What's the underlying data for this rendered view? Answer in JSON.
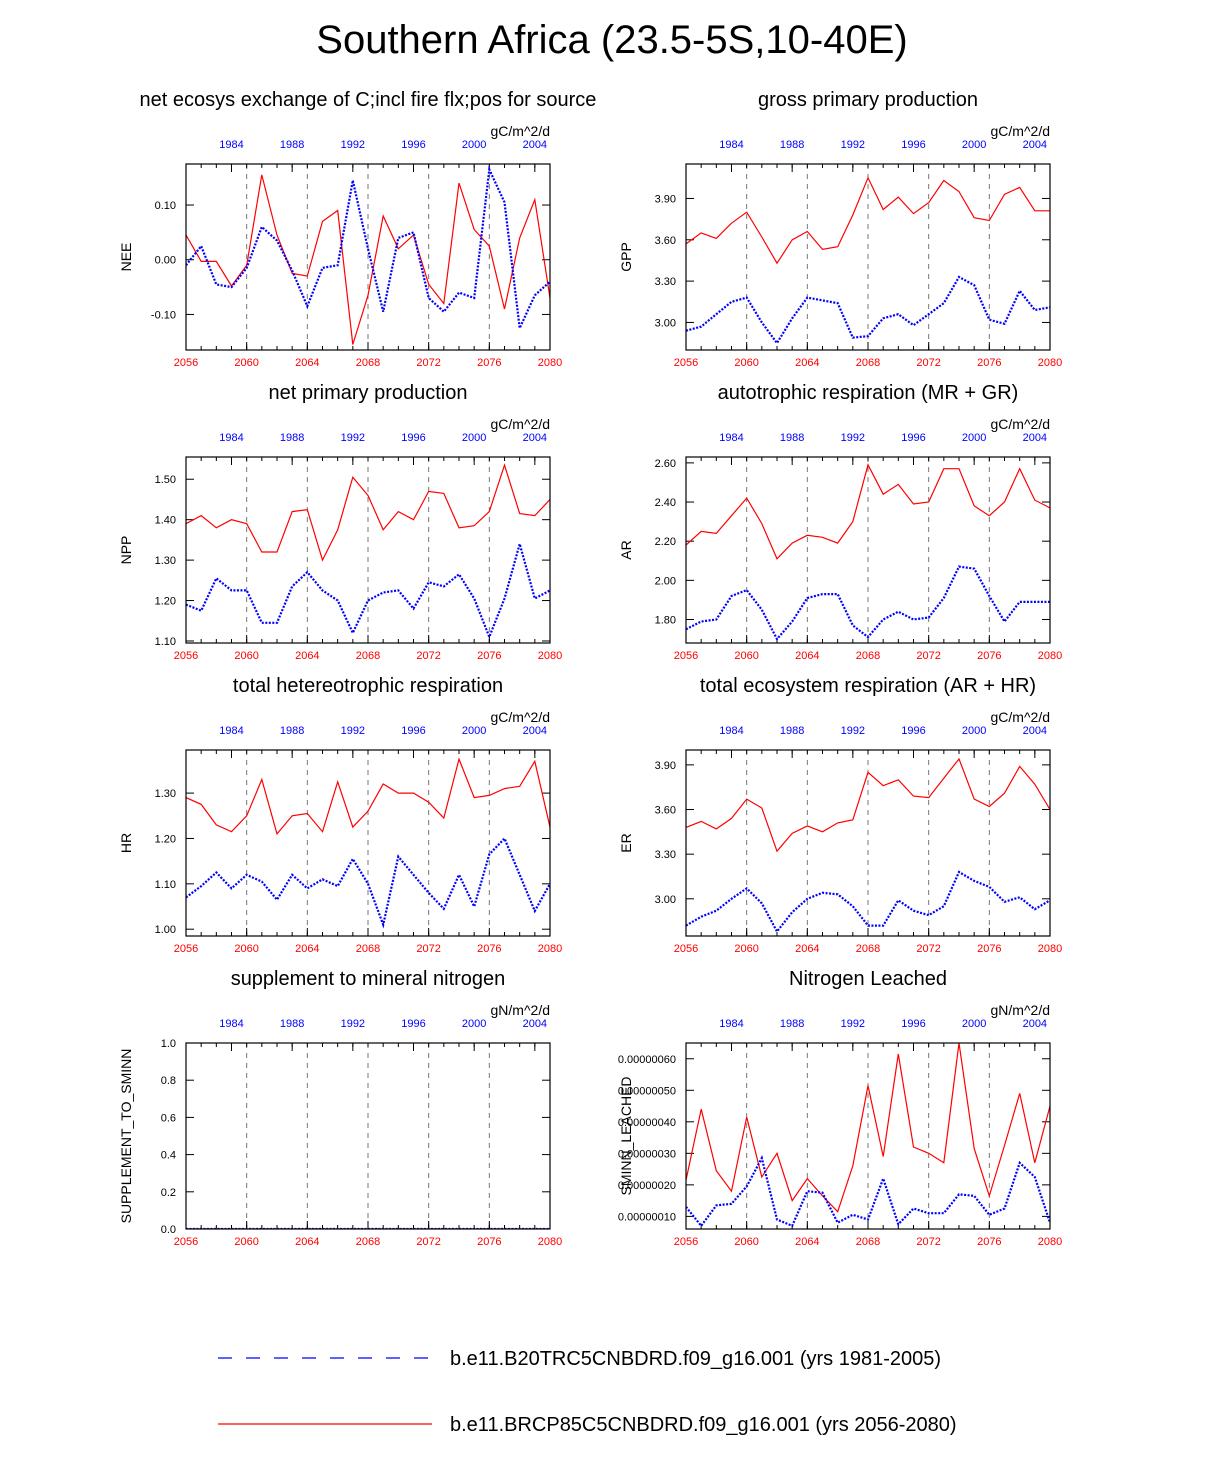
{
  "title": "Southern Africa (23.5-5S,10-40E)",
  "colors": {
    "future": "#ff0000",
    "historical": "#0000ff",
    "grid": "#777777"
  },
  "legend": {
    "historical": "b.e11.B20TRC5CNBDRD.f09_g16.001 (yrs 1981-2005)",
    "future": "b.e11.BRCP85C5CNBDRD.f09_g16.001 (yrs 2056-2080)"
  },
  "chart_data": [
    {
      "type": "line",
      "title": "net ecosys exchange of C;incl fire flx;pos for source",
      "units": "gC/m^2/d",
      "ylabel": "NEE",
      "xlim_bottom": [
        2056,
        2080
      ],
      "xlim_top": [
        1981,
        2005
      ],
      "bottom_ticks": [
        "2056",
        "2060",
        "2064",
        "2068",
        "2072",
        "2076",
        "2080"
      ],
      "top_ticks": [
        "1984",
        "1988",
        "1992",
        "1996",
        "2000",
        "2004"
      ],
      "ylim": [
        -0.165,
        0.175
      ],
      "yticks": [
        -0.1,
        0.0,
        0.1
      ],
      "ytick_labels": [
        "-0.10",
        "0.00",
        "0.10"
      ],
      "series": [
        {
          "name": "b.e11.BRCP85C5CNBDRD.f09_g16.001 (yrs 2056-2080)",
          "style": "solid",
          "values": [
            0.045,
            -0.003,
            -0.003,
            -0.048,
            -0.01,
            0.155,
            0.045,
            -0.025,
            -0.03,
            0.07,
            0.09,
            -0.155,
            -0.065,
            0.08,
            0.02,
            0.045,
            -0.045,
            -0.08,
            0.14,
            0.055,
            0.025,
            -0.09,
            0.04,
            0.11,
            -0.07
          ]
        },
        {
          "name": "b.e11.B20TRC5CNBDRD.f09_g16.001 (yrs 1981-2005)",
          "style": "dotted",
          "values": [
            -0.01,
            0.025,
            -0.045,
            -0.05,
            -0.015,
            0.06,
            0.035,
            -0.02,
            -0.085,
            -0.015,
            -0.01,
            0.145,
            0.02,
            -0.095,
            0.04,
            0.05,
            -0.07,
            -0.095,
            -0.06,
            -0.07,
            0.165,
            0.105,
            -0.125,
            -0.065,
            -0.04
          ]
        }
      ]
    },
    {
      "type": "line",
      "title": "gross primary production",
      "units": "gC/m^2/d",
      "ylabel": "GPP",
      "xlim_bottom": [
        2056,
        2080
      ],
      "xlim_top": [
        1981,
        2005
      ],
      "bottom_ticks": [
        "2056",
        "2060",
        "2064",
        "2068",
        "2072",
        "2076",
        "2080"
      ],
      "top_ticks": [
        "1984",
        "1988",
        "1992",
        "1996",
        "2000",
        "2004"
      ],
      "ylim": [
        2.8,
        4.15
      ],
      "yticks": [
        3.0,
        3.3,
        3.6,
        3.9
      ],
      "ytick_labels": [
        "3.00",
        "3.30",
        "3.60",
        "3.90"
      ],
      "series": [
        {
          "name": "b.e11.BRCP85C5CNBDRD.f09_g16.001 (yrs 2056-2080)",
          "style": "solid",
          "values": [
            3.57,
            3.65,
            3.61,
            3.72,
            3.8,
            3.62,
            3.43,
            3.6,
            3.66,
            3.53,
            3.55,
            3.78,
            4.05,
            3.82,
            3.91,
            3.79,
            3.87,
            4.03,
            3.95,
            3.76,
            3.74,
            3.93,
            3.98,
            3.81,
            3.81
          ]
        },
        {
          "name": "b.e11.B20TRC5CNBDRD.f09_g16.001 (yrs 1981-2005)",
          "style": "dotted",
          "values": [
            2.94,
            2.97,
            3.06,
            3.15,
            3.18,
            3.0,
            2.85,
            3.03,
            3.18,
            3.16,
            3.14,
            2.89,
            2.9,
            3.03,
            3.06,
            2.98,
            3.06,
            3.14,
            3.33,
            3.27,
            3.02,
            2.99,
            3.23,
            3.09,
            3.11
          ]
        }
      ]
    },
    {
      "type": "line",
      "title": "net primary production",
      "units": "gC/m^2/d",
      "ylabel": "NPP",
      "xlim_bottom": [
        2056,
        2080
      ],
      "xlim_top": [
        1981,
        2005
      ],
      "bottom_ticks": [
        "2056",
        "2060",
        "2064",
        "2068",
        "2072",
        "2076",
        "2080"
      ],
      "top_ticks": [
        "1984",
        "1988",
        "1992",
        "1996",
        "2000",
        "2004"
      ],
      "ylim": [
        1.095,
        1.555
      ],
      "yticks": [
        1.1,
        1.2,
        1.3,
        1.4,
        1.5
      ],
      "ytick_labels": [
        "1.10",
        "1.20",
        "1.30",
        "1.40",
        "1.50"
      ],
      "series": [
        {
          "name": "b.e11.BRCP85C5CNBDRD.f09_g16.001 (yrs 2056-2080)",
          "style": "solid",
          "values": [
            1.39,
            1.41,
            1.38,
            1.4,
            1.39,
            1.32,
            1.32,
            1.42,
            1.425,
            1.3,
            1.375,
            1.505,
            1.46,
            1.375,
            1.42,
            1.4,
            1.47,
            1.465,
            1.38,
            1.385,
            1.42,
            1.535,
            1.415,
            1.41,
            1.45
          ]
        },
        {
          "name": "b.e11.B20TRC5CNBDRD.f09_g16.001 (yrs 1981-2005)",
          "style": "dotted",
          "values": [
            1.19,
            1.175,
            1.255,
            1.225,
            1.225,
            1.145,
            1.145,
            1.235,
            1.27,
            1.225,
            1.2,
            1.12,
            1.2,
            1.22,
            1.225,
            1.18,
            1.245,
            1.235,
            1.265,
            1.205,
            1.11,
            1.205,
            1.34,
            1.205,
            1.225
          ]
        }
      ]
    },
    {
      "type": "line",
      "title": "autotrophic respiration (MR + GR)",
      "units": "gC/m^2/d",
      "ylabel": "AR",
      "xlim_bottom": [
        2056,
        2080
      ],
      "xlim_top": [
        1981,
        2005
      ],
      "bottom_ticks": [
        "2056",
        "2060",
        "2064",
        "2068",
        "2072",
        "2076",
        "2080"
      ],
      "top_ticks": [
        "1984",
        "1988",
        "1992",
        "1996",
        "2000",
        "2004"
      ],
      "ylim": [
        1.68,
        2.63
      ],
      "yticks": [
        1.8,
        2.0,
        2.2,
        2.4,
        2.6
      ],
      "ytick_labels": [
        "1.80",
        "2.00",
        "2.20",
        "2.40",
        "2.60"
      ],
      "series": [
        {
          "name": "b.e11.BRCP85C5CNBDRD.f09_g16.001 (yrs 2056-2080)",
          "style": "solid",
          "values": [
            2.18,
            2.25,
            2.24,
            2.33,
            2.42,
            2.29,
            2.11,
            2.19,
            2.23,
            2.22,
            2.19,
            2.3,
            2.59,
            2.44,
            2.49,
            2.39,
            2.4,
            2.57,
            2.57,
            2.38,
            2.33,
            2.4,
            2.57,
            2.41,
            2.37
          ]
        },
        {
          "name": "b.e11.B20TRC5CNBDRD.f09_g16.001 (yrs 1981-2005)",
          "style": "dotted",
          "values": [
            1.75,
            1.79,
            1.8,
            1.92,
            1.95,
            1.85,
            1.7,
            1.79,
            1.91,
            1.93,
            1.93,
            1.77,
            1.71,
            1.8,
            1.84,
            1.8,
            1.81,
            1.91,
            2.07,
            2.06,
            1.92,
            1.79,
            1.89,
            1.89,
            1.89
          ]
        }
      ]
    },
    {
      "type": "line",
      "title": "total hetereotrophic respiration",
      "units": "gC/m^2/d",
      "ylabel": "HR",
      "xlim_bottom": [
        2056,
        2080
      ],
      "xlim_top": [
        1981,
        2005
      ],
      "bottom_ticks": [
        "2056",
        "2060",
        "2064",
        "2068",
        "2072",
        "2076",
        "2080"
      ],
      "top_ticks": [
        "1984",
        "1988",
        "1992",
        "1996",
        "2000",
        "2004"
      ],
      "ylim": [
        0.985,
        1.395
      ],
      "yticks": [
        1.0,
        1.1,
        1.2,
        1.3
      ],
      "ytick_labels": [
        "1.00",
        "1.10",
        "1.20",
        "1.30"
      ],
      "series": [
        {
          "name": "b.e11.BRCP85C5CNBDRD.f09_g16.001 (yrs 2056-2080)",
          "style": "solid",
          "values": [
            1.29,
            1.275,
            1.23,
            1.215,
            1.25,
            1.33,
            1.21,
            1.25,
            1.255,
            1.215,
            1.325,
            1.225,
            1.26,
            1.32,
            1.3,
            1.3,
            1.28,
            1.245,
            1.375,
            1.29,
            1.295,
            1.31,
            1.315,
            1.37,
            1.225
          ]
        },
        {
          "name": "b.e11.B20TRC5CNBDRD.f09_g16.001 (yrs 1981-2005)",
          "style": "dotted",
          "values": [
            1.07,
            1.095,
            1.125,
            1.09,
            1.12,
            1.105,
            1.065,
            1.12,
            1.09,
            1.11,
            1.095,
            1.155,
            1.1,
            1.01,
            1.16,
            1.12,
            1.08,
            1.045,
            1.12,
            1.05,
            1.165,
            1.2,
            1.12,
            1.04,
            1.1
          ]
        }
      ]
    },
    {
      "type": "line",
      "title": "total ecosystem respiration (AR + HR)",
      "units": "gC/m^2/d",
      "ylabel": "ER",
      "xlim_bottom": [
        2056,
        2080
      ],
      "xlim_top": [
        1981,
        2005
      ],
      "bottom_ticks": [
        "2056",
        "2060",
        "2064",
        "2068",
        "2072",
        "2076",
        "2080"
      ],
      "top_ticks": [
        "1984",
        "1988",
        "1992",
        "1996",
        "2000",
        "2004"
      ],
      "ylim": [
        2.75,
        4.0
      ],
      "yticks": [
        3.0,
        3.3,
        3.6,
        3.9
      ],
      "ytick_labels": [
        "3.00",
        "3.30",
        "3.60",
        "3.90"
      ],
      "series": [
        {
          "name": "b.e11.BRCP85C5CNBDRD.f09_g16.001 (yrs 2056-2080)",
          "style": "solid",
          "values": [
            3.48,
            3.52,
            3.47,
            3.54,
            3.67,
            3.61,
            3.32,
            3.44,
            3.49,
            3.45,
            3.51,
            3.53,
            3.85,
            3.76,
            3.8,
            3.69,
            3.68,
            3.81,
            3.94,
            3.67,
            3.62,
            3.71,
            3.89,
            3.77,
            3.6
          ]
        },
        {
          "name": "b.e11.B20TRC5CNBDRD.f09_g16.001 (yrs 1981-2005)",
          "style": "dotted",
          "values": [
            2.82,
            2.88,
            2.92,
            3.0,
            3.07,
            2.97,
            2.78,
            2.91,
            3.0,
            3.04,
            3.03,
            2.95,
            2.82,
            2.82,
            2.99,
            2.92,
            2.89,
            2.95,
            3.18,
            3.12,
            3.08,
            2.98,
            3.01,
            2.93,
            2.99
          ]
        }
      ]
    },
    {
      "type": "line",
      "title": "supplement to mineral nitrogen",
      "units": "gN/m^2/d",
      "ylabel": "SUPPLEMENT_TO_SMINN",
      "xlim_bottom": [
        2056,
        2080
      ],
      "xlim_top": [
        1981,
        2005
      ],
      "bottom_ticks": [
        "2056",
        "2060",
        "2064",
        "2068",
        "2072",
        "2076",
        "2080"
      ],
      "top_ticks": [
        "1984",
        "1988",
        "1992",
        "1996",
        "2000",
        "2004"
      ],
      "ylim": [
        0.0,
        1.0
      ],
      "yticks": [
        0.0,
        0.2,
        0.4,
        0.6,
        0.8,
        1.0
      ],
      "ytick_labels": [
        "0.0",
        "0.2",
        "0.4",
        "0.6",
        "0.8",
        "1.0"
      ],
      "series": [
        {
          "name": "b.e11.BRCP85C5CNBDRD.f09_g16.001 (yrs 2056-2080)",
          "style": "solid",
          "values": [
            0,
            0,
            0,
            0,
            0,
            0,
            0,
            0,
            0,
            0,
            0,
            0,
            0,
            0,
            0,
            0,
            0,
            0,
            0,
            0,
            0,
            0,
            0,
            0,
            0
          ]
        },
        {
          "name": "b.e11.B20TRC5CNBDRD.f09_g16.001 (yrs 1981-2005)",
          "style": "dotted",
          "values": [
            0,
            0,
            0,
            0,
            0,
            0,
            0,
            0,
            0,
            0,
            0,
            0,
            0,
            0,
            0,
            0,
            0,
            0,
            0,
            0,
            0,
            0,
            0,
            0,
            0
          ]
        }
      ]
    },
    {
      "type": "line",
      "title": "Nitrogen Leached",
      "units": "gN/m^2/d",
      "ylabel": "SMINN_LEACHED",
      "xlim_bottom": [
        2056,
        2080
      ],
      "xlim_top": [
        1981,
        2005
      ],
      "bottom_ticks": [
        "2056",
        "2060",
        "2064",
        "2068",
        "2072",
        "2076",
        "2080"
      ],
      "top_ticks": [
        "1984",
        "1988",
        "1992",
        "1996",
        "2000",
        "2004"
      ],
      "ylim": [
        6e-08,
        6.5e-07
      ],
      "yticks": [
        1e-07,
        2e-07,
        3e-07,
        4e-07,
        5e-07,
        6e-07
      ],
      "ytick_labels": [
        "0.00000010",
        "0.00000020",
        "0.00000030",
        "0.00000040",
        "0.00000050",
        "0.00000060"
      ],
      "series": [
        {
          "name": "b.e11.BRCP85C5CNBDRD.f09_g16.001 (yrs 2056-2080)",
          "style": "solid",
          "values": [
            2.15e-07,
            4.4e-07,
            2.45e-07,
            1.8e-07,
            4.15e-07,
            2.25e-07,
            3e-07,
            1.5e-07,
            2.2e-07,
            1.65e-07,
            1.15e-07,
            2.6e-07,
            5.15e-07,
            2.9e-07,
            6.15e-07,
            3.2e-07,
            3e-07,
            2.7e-07,
            6.5e-07,
            3.15e-07,
            1.65e-07,
            3.25e-07,
            4.9e-07,
            2.7e-07,
            4.5e-07
          ]
        },
        {
          "name": "b.e11.B20TRC5CNBDRD.f09_g16.001 (yrs 1981-2005)",
          "style": "dotted",
          "values": [
            1.3e-07,
            7e-08,
            1.35e-07,
            1.4e-07,
            1.95e-07,
            2.85e-07,
            9e-08,
            7e-08,
            1.8e-07,
            1.75e-07,
            8e-08,
            1.05e-07,
            9e-08,
            2.2e-07,
            7.5e-08,
            1.25e-07,
            1.1e-07,
            1.1e-07,
            1.7e-07,
            1.65e-07,
            1.05e-07,
            1.25e-07,
            2.7e-07,
            2.25e-07,
            8e-08
          ]
        }
      ]
    }
  ]
}
